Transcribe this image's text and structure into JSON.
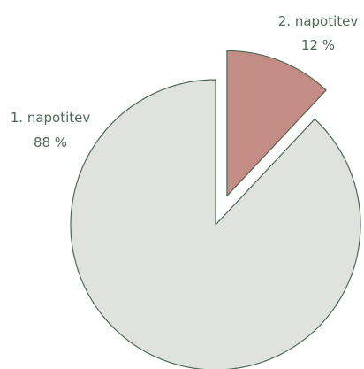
{
  "chart_data": {
    "type": "pie",
    "categories": [
      "1. napotitev",
      "2. napotitev"
    ],
    "values": [
      88,
      12
    ],
    "labels": [
      {
        "name": "1. napotitev",
        "value_text": "88 %"
      },
      {
        "name": "2. napotitev",
        "value_text": "12 %"
      }
    ],
    "exploded": [
      false,
      true
    ],
    "colors": [
      "#dfe2df",
      "#c38c84"
    ],
    "edge_color": "#4e6a5a",
    "label_color": "#4e6a5a",
    "title": "",
    "legend": "none"
  }
}
